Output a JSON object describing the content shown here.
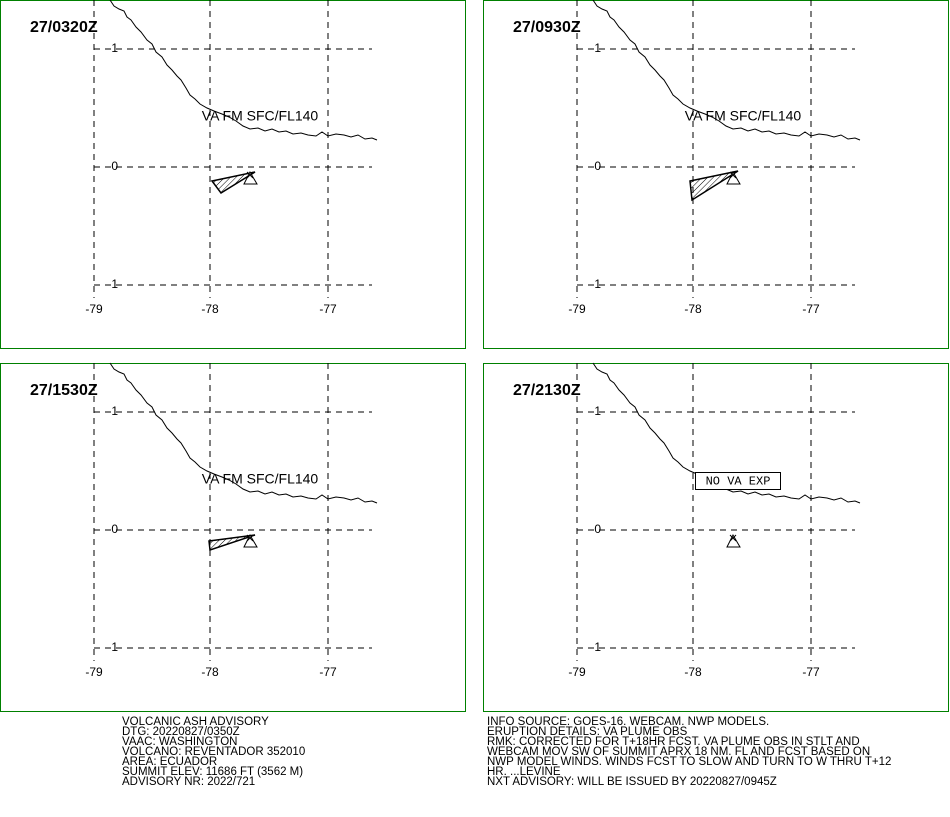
{
  "panels": [
    {
      "time": "27/0320Z",
      "annotation": "VA FM SFC/FL140"
    },
    {
      "time": "27/0930Z",
      "annotation": "VA FM SFC/FL140"
    },
    {
      "time": "27/1530Z",
      "annotation": "VA FM SFC/FL140"
    },
    {
      "time": "27/2130Z",
      "annotation": "NO VA EXP"
    }
  ],
  "grid": {
    "lat_labels": [
      "1",
      "0",
      "-1"
    ],
    "lon_labels": [
      "-79",
      "-78",
      "-77"
    ]
  },
  "advisory": {
    "left": [
      "VOLCANIC ASH ADVISORY",
      "DTG: 20220827/0350Z",
      "VAAC: WASHINGTON",
      "VOLCANO: REVENTADOR 352010",
      "AREA: ECUADOR",
      "SUMMIT ELEV: 11686 FT (3562 M)",
      "ADVISORY NR: 2022/721"
    ],
    "right": [
      "INFO SOURCE: GOES-16. WEBCAM. NWP MODELS.",
      "ERUPTION DETAILS: VA PLUME OBS",
      "RMK: CORRECTED FOR T+18HR FCST. VA PLUME OBS IN STLT AND",
      "WEBCAM MOV SW OF SUMMIT APRX 18 NM. FL AND FCST BASED ON",
      "NWP MODEL WINDS. WINDS FCST TO SLOW AND TURN TO W THRU T+12",
      "HR. ...LEVINE",
      "NXT ADVISORY: WILL BE ISSUED BY 20220827/0945Z"
    ]
  }
}
